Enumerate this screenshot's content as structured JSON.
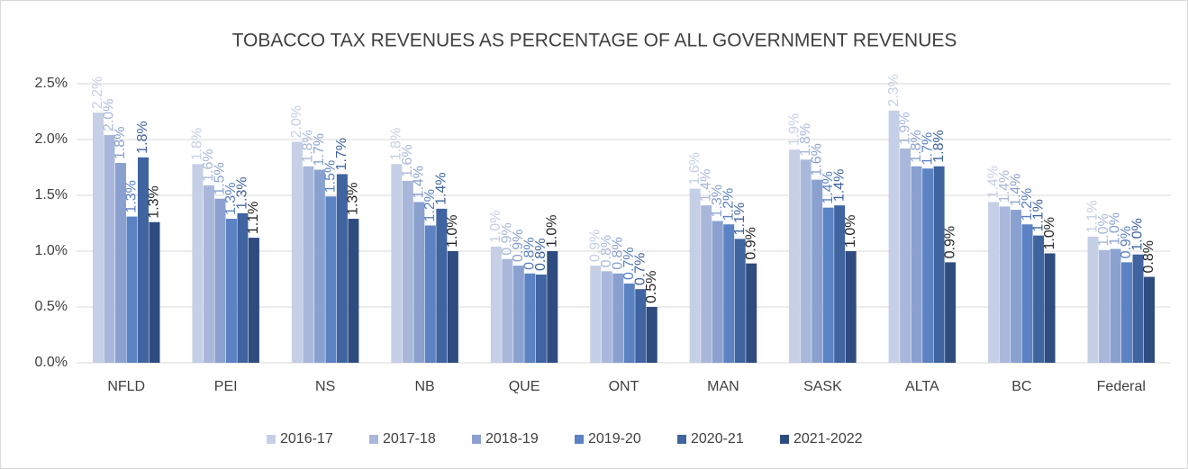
{
  "chart_data": {
    "type": "bar",
    "title": "TOBACCO TAX REVENUES AS PERCENTAGE OF ALL GOVERNMENT REVENUES",
    "categories": [
      "NFLD",
      "PEI",
      "NS",
      "NB",
      "QUE",
      "ONT",
      "MAN",
      "SASK",
      "ALTA",
      "BC",
      "Federal"
    ],
    "series": [
      {
        "name": "2016-17",
        "color": "#c5cfe5",
        "values": [
          2.24,
          1.78,
          1.98,
          1.78,
          1.04,
          0.87,
          1.56,
          1.91,
          2.26,
          1.44,
          1.13
        ],
        "value_labels": [
          "2.2%",
          "1.8%",
          "2.0%",
          "1.8%",
          "1.0%",
          "0.9%",
          "1.6%",
          "1.9%",
          "2.3%",
          "1.4%",
          "1.1%"
        ]
      },
      {
        "name": "2017-18",
        "color": "#a9b8da",
        "values": [
          2.04,
          1.59,
          1.76,
          1.63,
          0.93,
          0.82,
          1.41,
          1.82,
          1.92,
          1.4,
          1.01
        ],
        "value_labels": [
          "2.0%",
          "1.6%",
          "1.8%",
          "1.6%",
          "0.9%",
          "0.8%",
          "1.4%",
          "1.8%",
          "1.9%",
          "1.4%",
          "1.0%"
        ]
      },
      {
        "name": "2018-19",
        "color": "#8aa1d0",
        "values": [
          1.79,
          1.47,
          1.73,
          1.44,
          0.87,
          0.8,
          1.27,
          1.64,
          1.76,
          1.37,
          1.02
        ],
        "value_labels": [
          "1.8%",
          "1.5%",
          "1.7%",
          "1.4%",
          "0.9%",
          "0.8%",
          "1.3%",
          "1.6%",
          "1.8%",
          "1.4%",
          "1.0%"
        ]
      },
      {
        "name": "2019-20",
        "color": "#5b82c2",
        "values": [
          1.31,
          1.29,
          1.49,
          1.23,
          0.8,
          0.71,
          1.24,
          1.39,
          1.74,
          1.24,
          0.9
        ],
        "value_labels": [
          "1.3%",
          "1.3%",
          "1.5%",
          "1.2%",
          "0.8%",
          "0.7%",
          "1.2%",
          "1.4%",
          "1.7%",
          "1.2%",
          "0.9%"
        ]
      },
      {
        "name": "2020-21",
        "color": "#3f649f",
        "values": [
          1.84,
          1.34,
          1.69,
          1.38,
          0.79,
          0.66,
          1.11,
          1.41,
          1.76,
          1.14,
          0.97
        ],
        "value_labels": [
          "1.8%",
          "1.3%",
          "1.7%",
          "1.4%",
          "0.8%",
          "0.7%",
          "1.1%",
          "1.4%",
          "1.8%",
          "1.1%",
          "1.0%"
        ]
      },
      {
        "name": "2021-2022",
        "color": "#2e4c7f",
        "values": [
          1.26,
          1.12,
          1.29,
          1.0,
          1.0,
          0.5,
          0.89,
          1.0,
          0.9,
          0.98,
          0.77
        ],
        "value_labels": [
          "1.3%",
          "1.1%",
          "1.3%",
          "1.0%",
          "1.0%",
          "0.5%",
          "0.9%",
          "1.0%",
          "0.9%",
          "1.0%",
          "0.8%"
        ]
      }
    ],
    "ylim": [
      0,
      2.5
    ],
    "yticks": [
      {
        "value": 0,
        "label": "0.0%"
      },
      {
        "value": 0.5,
        "label": "0.5%"
      },
      {
        "value": 1,
        "label": "1.0%"
      },
      {
        "value": 1.5,
        "label": "1.5%"
      },
      {
        "value": 2,
        "label": "2.0%"
      },
      {
        "value": 2.5,
        "label": "2.5%"
      }
    ],
    "grid": true,
    "legend": "bottom"
  }
}
